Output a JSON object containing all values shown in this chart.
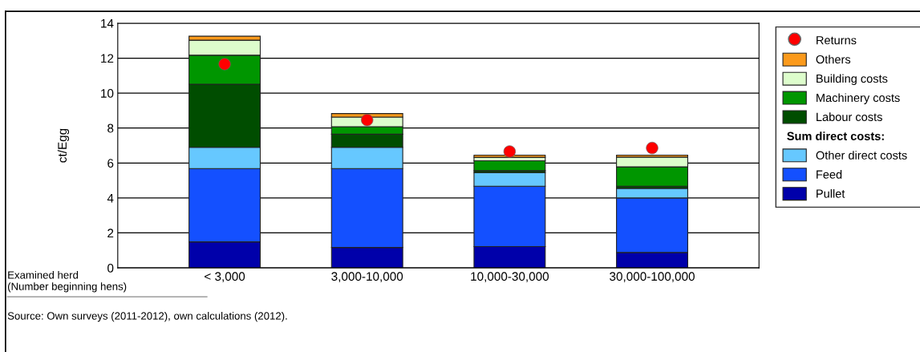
{
  "chart_data": {
    "type": "bar",
    "stacked": true,
    "ylabel": "ct/Egg",
    "xlabel": "Examined herd\n(Number beginning hens)",
    "categories": [
      "< 3,000",
      "3,000-10,000",
      "10,000-30,000",
      "30,000-100,000"
    ],
    "series": [
      {
        "name": "Pullet",
        "color": "#0000aa",
        "values": [
          1.49,
          1.17,
          1.22,
          0.88
        ]
      },
      {
        "name": "Feed",
        "color": "#1450ff",
        "values": [
          4.19,
          4.51,
          3.45,
          3.12
        ]
      },
      {
        "name": "Other direct costs",
        "color": "#66c8ff",
        "values": [
          1.22,
          1.22,
          0.78,
          0.55
        ]
      },
      {
        "name": "Labour costs",
        "color": "#004d00",
        "values": [
          3.61,
          0.75,
          0.11,
          0.12
        ]
      },
      {
        "name": "Machinery costs",
        "color": "#009600",
        "values": [
          1.66,
          0.43,
          0.57,
          1.11
        ]
      },
      {
        "name": "Building costs",
        "color": "#ddfdcc",
        "values": [
          0.86,
          0.55,
          0.2,
          0.56
        ]
      },
      {
        "name": "Others",
        "color": "#fb9a1c",
        "values": [
          0.23,
          0.2,
          0.12,
          0.11
        ]
      },
      {
        "name": "Returns",
        "type": "scatter",
        "color": "#ff0000",
        "marker": "circle",
        "values": [
          11.66,
          8.46,
          6.66,
          6.86
        ]
      }
    ],
    "ylim": [
      0,
      14
    ],
    "yticks": [
      0,
      2,
      4,
      6,
      8,
      10,
      12,
      14
    ],
    "grid": "y",
    "legend": "right",
    "annotations": [
      "Sum direct costs:",
      "Source: Own surveys (2011-2012), own calculations (2012)."
    ]
  }
}
